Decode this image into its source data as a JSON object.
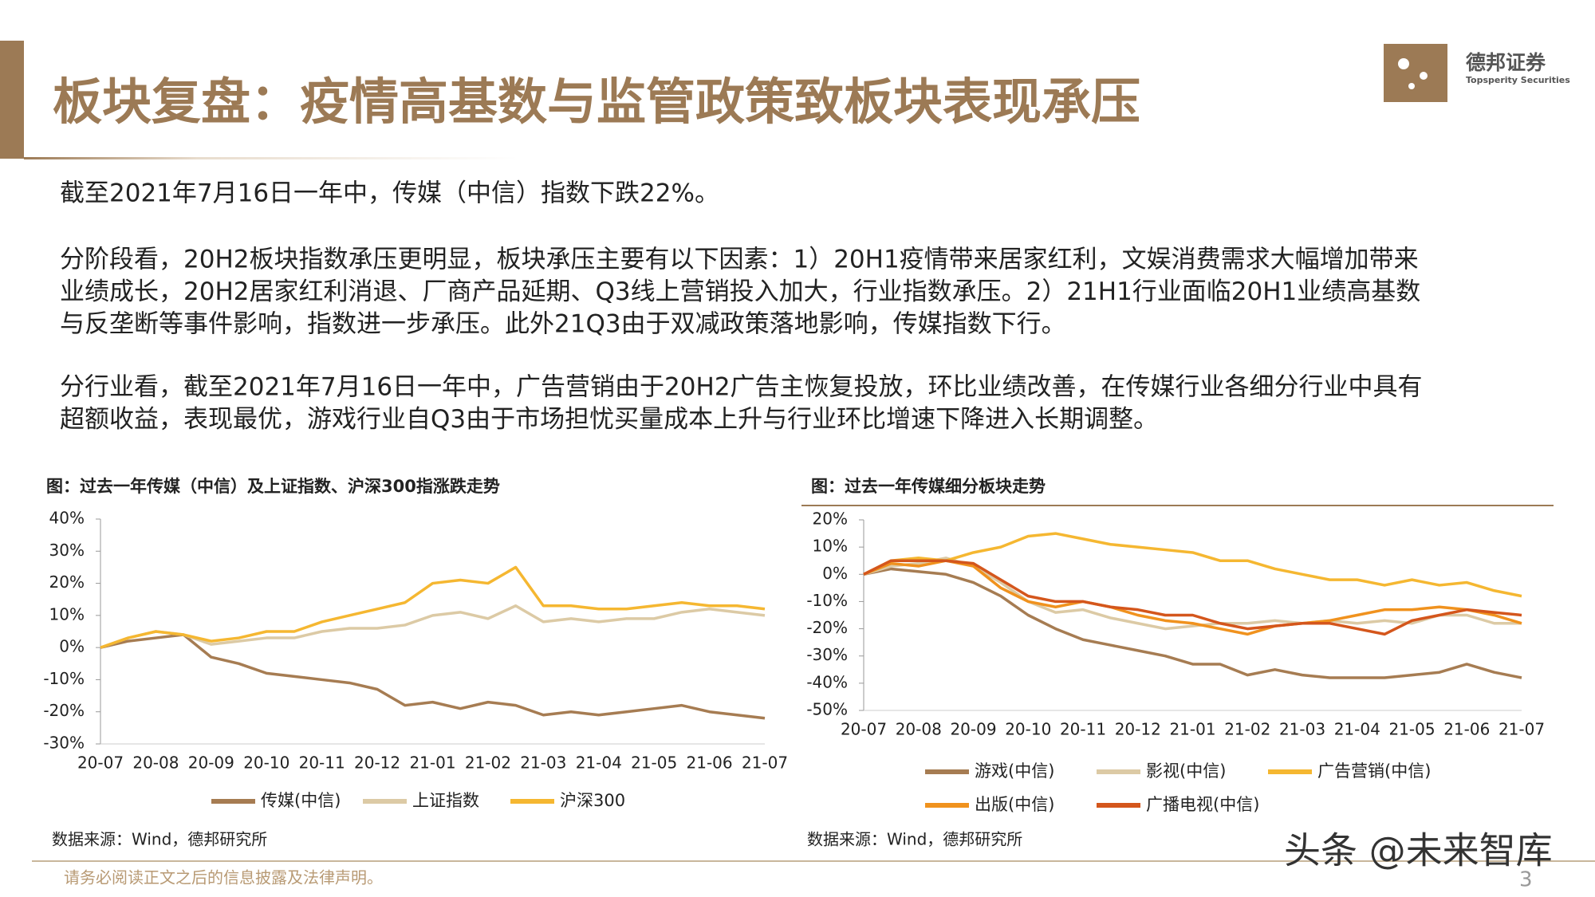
{
  "header": {
    "title": "板块复盘：疫情高基数与监管政策致板块表现承压",
    "logo_name": "德邦证券",
    "logo_sub": "Topsperity Securities"
  },
  "paragraphs": [
    [
      "截至2021年7月16日一年中，传媒（中信）指数下跌22%。"
    ],
    [
      "分阶段看，20H2板块指数承压更明显，板块承压主要有以下因素：1）20H1疫情带来居家红利，文娱消费需求大幅增加带来",
      "业绩成长，20H2居家红利消退、厂商产品延期、Q3线上营销投入加大，行业指数承压。2）21H1行业面临20H1业绩高基数",
      "与反垄断等事件影响，指数进一步承压。此外21Q3由于双减政策落地影响，传媒指数下行。"
    ],
    [
      "分行业看，截至2021年7月16日一年中，广告营销由于20H2广告主恢复投放，环比业绩改善，在传媒行业各细分行业中具有",
      "超额收益，表现最优，游戏行业自Q3由于市场担忧买量成本上升与行业环比增速下降进入长期调整。"
    ]
  ],
  "chart_data": [
    {
      "type": "line",
      "title": "图：过去一年传媒（中信）及上证指数、沪深300指涨跌走势",
      "source": "数据来源：Wind，德邦研究所",
      "grid": false,
      "categories": [
        "20-07",
        null,
        "20-08",
        null,
        "20-09",
        null,
        "20-10",
        null,
        "20-11",
        null,
        "20-12",
        null,
        "21-01",
        null,
        "21-02",
        null,
        "21-03",
        null,
        "21-04",
        null,
        "21-05",
        null,
        "21-06",
        null,
        "21-07"
      ],
      "ylim": [
        -30,
        40
      ],
      "yticks": [
        {
          "value": -30,
          "label": "-30%"
        },
        {
          "value": -20,
          "label": "-20%"
        },
        {
          "value": -10,
          "label": "-10%"
        },
        {
          "value": 0,
          "label": "0%"
        },
        {
          "value": 10,
          "label": "10%"
        },
        {
          "value": 20,
          "label": "20%"
        },
        {
          "value": 30,
          "label": "30%"
        },
        {
          "value": 40,
          "label": "40%"
        }
      ],
      "series": [
        {
          "name": "传媒(中信)",
          "color": "#a67c52",
          "values": [
            0,
            2,
            3,
            4,
            -3,
            -5,
            -8,
            -9,
            -10,
            -11,
            -13,
            -18,
            -17,
            -19,
            -17,
            -18,
            -21,
            -20,
            -21,
            -20,
            -19,
            -18,
            -20,
            -21,
            -22
          ]
        },
        {
          "name": "上证指数",
          "color": "#dccaa5",
          "values": [
            0,
            3,
            5,
            4,
            1,
            2,
            3,
            3,
            5,
            6,
            6,
            7,
            10,
            11,
            9,
            13,
            8,
            9,
            8,
            9,
            9,
            11,
            12,
            11,
            10
          ]
        },
        {
          "name": "沪深300",
          "color": "#f5b731",
          "values": [
            0,
            3,
            5,
            4,
            2,
            3,
            5,
            5,
            8,
            10,
            12,
            14,
            20,
            21,
            20,
            25,
            13,
            13,
            12,
            12,
            13,
            14,
            13,
            13,
            12
          ]
        }
      ]
    },
    {
      "type": "line",
      "title": "图：过去一年传媒细分板块走势",
      "source": "数据来源：Wind，德邦研究所",
      "grid": false,
      "categories": [
        "20-07",
        null,
        "20-08",
        null,
        "20-09",
        null,
        "20-10",
        null,
        "20-11",
        null,
        "20-12",
        null,
        "21-01",
        null,
        "21-02",
        null,
        "21-03",
        null,
        "21-04",
        null,
        "21-05",
        null,
        "21-06",
        null,
        "21-07"
      ],
      "ylim": [
        -50,
        20
      ],
      "yticks": [
        {
          "value": -50,
          "label": "-50%"
        },
        {
          "value": -40,
          "label": "-40%"
        },
        {
          "value": -30,
          "label": "-30%"
        },
        {
          "value": -20,
          "label": "-20%"
        },
        {
          "value": -10,
          "label": "-10%"
        },
        {
          "value": 0,
          "label": "0%"
        },
        {
          "value": 10,
          "label": "10%"
        },
        {
          "value": 20,
          "label": "20%"
        }
      ],
      "series": [
        {
          "name": "游戏(中信)",
          "color": "#a67c52",
          "values": [
            0,
            2,
            1,
            0,
            -3,
            -8,
            -15,
            -20,
            -24,
            -26,
            -28,
            -30,
            -33,
            -33,
            -37,
            -35,
            -37,
            -38,
            -38,
            -38,
            -37,
            -36,
            -33,
            -36,
            -38
          ]
        },
        {
          "name": "影视(中信)",
          "color": "#dccaa5",
          "values": [
            0,
            3,
            4,
            6,
            3,
            -3,
            -10,
            -14,
            -13,
            -16,
            -18,
            -20,
            -19,
            -18,
            -18,
            -17,
            -18,
            -17,
            -18,
            -17,
            -18,
            -15,
            -15,
            -18,
            -18
          ]
        },
        {
          "name": "广告营销(中信)",
          "color": "#f5b731",
          "values": [
            0,
            5,
            6,
            5,
            8,
            10,
            14,
            15,
            13,
            11,
            10,
            9,
            8,
            5,
            5,
            2,
            0,
            -2,
            -2,
            -4,
            -2,
            -4,
            -3,
            -6,
            -8
          ]
        },
        {
          "name": "出版(中信)",
          "color": "#f0921e",
          "values": [
            0,
            4,
            3,
            5,
            3,
            -5,
            -10,
            -12,
            -10,
            -12,
            -15,
            -17,
            -18,
            -20,
            -22,
            -19,
            -18,
            -17,
            -15,
            -13,
            -13,
            -12,
            -13,
            -15,
            -18
          ]
        },
        {
          "name": "广播电视(中信)",
          "color": "#d4561c",
          "values": [
            0,
            5,
            5,
            5,
            4,
            -2,
            -8,
            -10,
            -10,
            -12,
            -13,
            -15,
            -15,
            -18,
            -20,
            -19,
            -18,
            -18,
            -20,
            -22,
            -17,
            -15,
            -13,
            -14,
            -15
          ]
        }
      ]
    }
  ],
  "footer": {
    "disclaimer": "请务必阅读正文之后的信息披露及法律声明。",
    "page": "3",
    "watermark": "头条 @未来智库"
  }
}
